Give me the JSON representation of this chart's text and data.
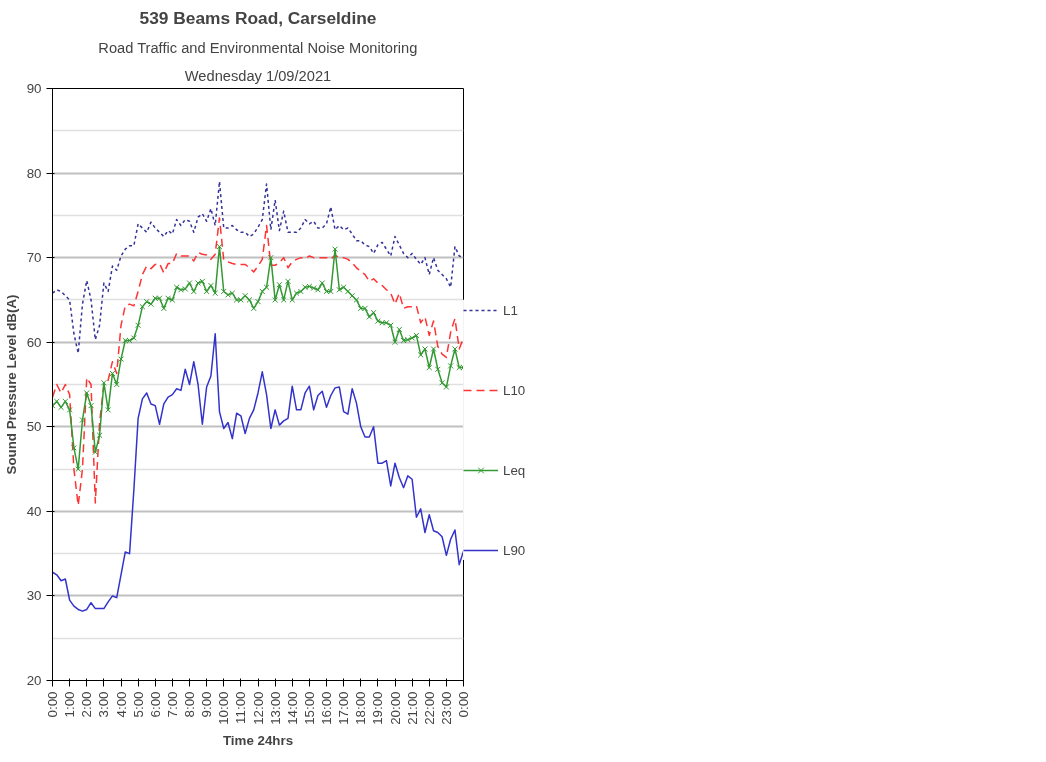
{
  "chart_data": {
    "type": "line",
    "title": "539 Beams Road, Carseldine",
    "subtitle": "Road Traffic and Environmental Noise Monitoring",
    "annotations": [
      "Wednesday 1/09/2021"
    ],
    "xlabel": "Time 24hrs",
    "ylabel": "Sound Pressure Level dB(A)",
    "x": [
      0,
      0.25,
      0.5,
      0.75,
      1,
      1.25,
      1.5,
      1.75,
      2,
      2.25,
      2.5,
      2.75,
      3,
      3.25,
      3.5,
      3.75,
      4,
      4.25,
      4.5,
      4.75,
      5,
      5.25,
      5.5,
      5.75,
      6,
      6.25,
      6.5,
      6.75,
      7,
      7.25,
      7.5,
      7.75,
      8,
      8.25,
      8.5,
      8.75,
      9,
      9.25,
      9.5,
      9.75,
      10,
      10.25,
      10.5,
      10.75,
      11,
      11.25,
      11.5,
      11.75,
      12,
      12.25,
      12.5,
      12.75,
      13,
      13.25,
      13.5,
      13.75,
      14,
      14.25,
      14.5,
      14.75,
      15,
      15.25,
      15.5,
      15.75,
      16,
      16.25,
      16.5,
      16.75,
      17,
      17.25,
      17.5,
      17.75,
      18,
      18.25,
      18.5,
      18.75,
      19,
      19.25,
      19.5,
      19.75,
      20,
      20.25,
      20.5,
      20.75,
      21,
      21.25,
      21.5,
      21.75,
      22,
      22.25,
      22.5,
      22.75,
      23,
      23.25,
      23.5,
      23.75,
      24
    ],
    "series": [
      {
        "name": "L1",
        "color": "#333399",
        "line_style": "dotted",
        "marker": "none",
        "values": [
          65.8,
          66.2,
          66,
          65.5,
          65,
          61,
          58.7,
          64.5,
          67.3,
          65,
          60.3,
          62,
          67,
          66,
          69,
          68.5,
          70.2,
          71,
          71.4,
          71.4,
          74,
          73.5,
          73,
          74.2,
          73.5,
          73,
          72.5,
          73.2,
          72.8,
          74.5,
          73.8,
          74.5,
          74.3,
          73,
          74.8,
          75.2,
          74.3,
          75.8,
          73.8,
          79,
          73.5,
          73.5,
          73.8,
          73.3,
          73,
          73,
          72.5,
          72.8,
          73.6,
          74.5,
          78.7,
          73.3,
          76.8,
          73.2,
          75.5,
          73,
          73,
          73,
          73.5,
          74.5,
          74,
          74.3,
          73.5,
          73.5,
          74,
          76,
          73.3,
          73.8,
          73.3,
          73.5,
          72.8,
          72,
          72,
          71.5,
          71.3,
          70.5,
          71.5,
          71.8,
          71,
          70.2,
          72.5,
          71.5,
          70.5,
          70,
          70.5,
          69.8,
          69.2,
          70,
          68,
          70,
          68.5,
          68,
          67.5,
          66.5,
          71.3,
          70.2,
          70
        ]
      },
      {
        "name": "L10",
        "color": "#ff3333",
        "line_style": "dashed",
        "marker": "none",
        "values": [
          53.5,
          55,
          54,
          55,
          53.8,
          45,
          40.7,
          45,
          55.8,
          55,
          41,
          50.5,
          55,
          55.5,
          57.7,
          56.3,
          62,
          64.3,
          64.5,
          64.3,
          66,
          68,
          69,
          68.7,
          69.2,
          69.3,
          68.2,
          69.3,
          69.3,
          70.5,
          70.2,
          70.2,
          70.2,
          69.6,
          70.6,
          70.4,
          70.3,
          69.8,
          70.4,
          74.7,
          69.7,
          69.5,
          69.3,
          69.2,
          69.2,
          69.2,
          68.8,
          68.3,
          69,
          69.8,
          73.8,
          69.1,
          69.1,
          69.4,
          70,
          68.8,
          69.5,
          69.8,
          70,
          69.9,
          70.2,
          70,
          70,
          70,
          70,
          69.8,
          70.3,
          70,
          70,
          69.8,
          69.4,
          68.8,
          68.4,
          68,
          67.2,
          67.5,
          67,
          66.7,
          66.2,
          65.8,
          64.5,
          65.8,
          64,
          64.2,
          64.2,
          64.3,
          62.3,
          63,
          60.8,
          62.5,
          59.5,
          58.6,
          58.2,
          61.2,
          62.8,
          59.2,
          60.5
        ]
      },
      {
        "name": "Leq",
        "color": "#339933",
        "line_style": "solid",
        "marker": "cross",
        "values": [
          52.5,
          53,
          52.3,
          53,
          52,
          47.5,
          45,
          50.8,
          54,
          52.5,
          47,
          49,
          55.2,
          52,
          56.3,
          55,
          58,
          60.2,
          60.2,
          60.5,
          62,
          64.2,
          64.8,
          64.5,
          65.2,
          65.2,
          64,
          65.2,
          65,
          66.5,
          66.2,
          66.3,
          67,
          66,
          67,
          67.2,
          66,
          66.7,
          65.8,
          71.3,
          66,
          65.6,
          65.8,
          65,
          65,
          65.5,
          65,
          64,
          64.8,
          66,
          66.5,
          70,
          65,
          66.8,
          65,
          67.2,
          65,
          65.8,
          66,
          66.5,
          66.6,
          66.4,
          66.2,
          67,
          66,
          66,
          71,
          66.2,
          66.5,
          66,
          65.5,
          65,
          64,
          64,
          63,
          63.5,
          62.5,
          62.3,
          62.3,
          62,
          60,
          61.5,
          60.2,
          60.3,
          60.5,
          60.8,
          58.5,
          59.2,
          57,
          59.2,
          56.8,
          55.2,
          54.7,
          57.2,
          59.2,
          57,
          57
        ]
      },
      {
        "name": "L90",
        "color": "#3333cc",
        "line_style": "solid",
        "marker": "none",
        "values": [
          32.8,
          32.5,
          31.8,
          32,
          29.5,
          28.8,
          28.4,
          28.2,
          28.4,
          29.2,
          28.5,
          28.5,
          28.5,
          29.3,
          30,
          29.8,
          32.5,
          35.2,
          35,
          42.5,
          51,
          53.3,
          54,
          52.7,
          52.5,
          50.3,
          52.7,
          53.5,
          53.8,
          54.5,
          54.3,
          56.8,
          55,
          57.7,
          55,
          50.3,
          54.7,
          56,
          61,
          51.8,
          49.8,
          50.5,
          48.6,
          51.6,
          51.3,
          49.2,
          51,
          52,
          54,
          56.5,
          53.8,
          49.8,
          52,
          50.2,
          50.7,
          51,
          54.8,
          52,
          52,
          54,
          54.8,
          52,
          53.7,
          54.2,
          52.3,
          53.7,
          54.6,
          54.7,
          51.8,
          51.5,
          54.5,
          52.8,
          50,
          48.8,
          48.8,
          50,
          45.7,
          45.7,
          46,
          43,
          45.7,
          44,
          42.8,
          44.2,
          43.8,
          39.3,
          40.3,
          37.5,
          39.6,
          37.7,
          37.5,
          37,
          34.8,
          36.7,
          37.8,
          33.7,
          35.3
        ]
      }
    ],
    "xlim": [
      0,
      24
    ],
    "xticks": [
      {
        "value": 0,
        "label": "0:00"
      },
      {
        "value": 1,
        "label": "1:00"
      },
      {
        "value": 2,
        "label": "2:00"
      },
      {
        "value": 3,
        "label": "3:00"
      },
      {
        "value": 4,
        "label": "4:00"
      },
      {
        "value": 5,
        "label": "5:00"
      },
      {
        "value": 6,
        "label": "6:00"
      },
      {
        "value": 7,
        "label": "7:00"
      },
      {
        "value": 8,
        "label": "8:00"
      },
      {
        "value": 9,
        "label": "9:00"
      },
      {
        "value": 10,
        "label": "10:00"
      },
      {
        "value": 11,
        "label": "11:00"
      },
      {
        "value": 12,
        "label": "12:00"
      },
      {
        "value": 13,
        "label": "13:00"
      },
      {
        "value": 14,
        "label": "14:00"
      },
      {
        "value": 15,
        "label": "15:00"
      },
      {
        "value": 16,
        "label": "16:00"
      },
      {
        "value": 17,
        "label": "17:00"
      },
      {
        "value": 18,
        "label": "18:00"
      },
      {
        "value": 19,
        "label": "19:00"
      },
      {
        "value": 20,
        "label": "20:00"
      },
      {
        "value": 21,
        "label": "21:00"
      },
      {
        "value": 22,
        "label": "22:00"
      },
      {
        "value": 23,
        "label": "23:00"
      },
      {
        "value": 24,
        "label": "0:00"
      }
    ],
    "ylim": [
      20,
      90
    ],
    "yticks": [
      20,
      30,
      40,
      50,
      60,
      70,
      80,
      90
    ],
    "grid": "y",
    "legend": "right"
  }
}
